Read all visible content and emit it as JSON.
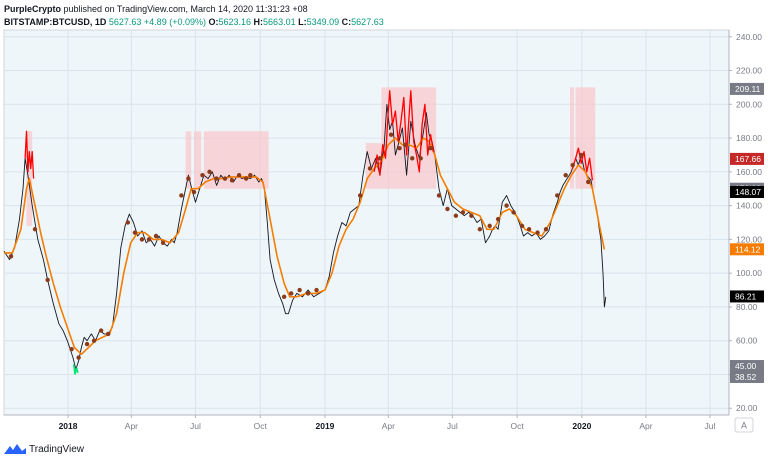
{
  "header": {
    "author": "PurpleCrypto",
    "published": "published on TradingView.com, March 14, 2020 11:31:23 +08",
    "symbol": "BITSTAMP:BTCUSD, 1D",
    "last": "5627.63",
    "change": "+4.89 (+0.09%)",
    "o_label": "O:",
    "o_value": "5623.16",
    "h_label": "H:",
    "h_value": "5663.01",
    "l_label": "L:",
    "l_value": "5349.09",
    "c_label": "C:",
    "c_value": "5627.63"
  },
  "footer": {
    "brand": "TradingView"
  },
  "axis_corner": "A",
  "colors": {
    "background": "#eef6fa",
    "price_line": "#131722",
    "ema_line": "#f57c00",
    "overbought_line": "#ff0000",
    "oversold_line": "#00e676",
    "shade": "#f8c8cc",
    "dot": "#8b3a1a"
  },
  "chart_data": {
    "type": "line",
    "x_tick_labels": [
      "2018",
      "Apr",
      "Jul",
      "Oct",
      "2019",
      "Apr",
      "Jul",
      "Oct",
      "2020",
      "Apr",
      "Jul"
    ],
    "y_tick_labels": [
      "20.00",
      "40.00",
      "60.00",
      "80.00",
      "100.00",
      "120.00",
      "140.00",
      "160.00",
      "180.00",
      "200.00",
      "220.00",
      "240.00"
    ],
    "y_ticks": [
      20,
      40,
      60,
      80,
      100,
      120,
      140,
      160,
      180,
      200,
      220,
      240
    ],
    "ylim": [
      16,
      244
    ],
    "xlim": [
      0,
      1030
    ],
    "x_ticks": [
      91,
      181,
      272,
      364,
      456,
      546,
      637,
      729,
      821,
      912,
      1003
    ],
    "price": [
      [
        0,
        113
      ],
      [
        8,
        108
      ],
      [
        15,
        115
      ],
      [
        22,
        132
      ],
      [
        27,
        150
      ],
      [
        30,
        168
      ],
      [
        34,
        158
      ],
      [
        40,
        140
      ],
      [
        48,
        120
      ],
      [
        56,
        108
      ],
      [
        62,
        96
      ],
      [
        70,
        82
      ],
      [
        78,
        70
      ],
      [
        84,
        66
      ],
      [
        90,
        60
      ],
      [
        94,
        55
      ],
      [
        98,
        50
      ],
      [
        102,
        43
      ],
      [
        106,
        48
      ],
      [
        110,
        56
      ],
      [
        114,
        62
      ],
      [
        118,
        60
      ],
      [
        124,
        64
      ],
      [
        130,
        60
      ],
      [
        136,
        66
      ],
      [
        142,
        64
      ],
      [
        148,
        64
      ],
      [
        154,
        68
      ],
      [
        160,
        88
      ],
      [
        166,
        115
      ],
      [
        172,
        128
      ],
      [
        178,
        135
      ],
      [
        184,
        130
      ],
      [
        190,
        122
      ],
      [
        196,
        125
      ],
      [
        202,
        118
      ],
      [
        208,
        120
      ],
      [
        214,
        116
      ],
      [
        220,
        122
      ],
      [
        226,
        118
      ],
      [
        232,
        116
      ],
      [
        238,
        120
      ],
      [
        242,
        118
      ],
      [
        246,
        124
      ],
      [
        252,
        138
      ],
      [
        258,
        150
      ],
      [
        262,
        158
      ],
      [
        268,
        148
      ],
      [
        272,
        142
      ],
      [
        278,
        150
      ],
      [
        284,
        158
      ],
      [
        290,
        156
      ],
      [
        296,
        160
      ],
      [
        302,
        152
      ],
      [
        308,
        158
      ],
      [
        314,
        155
      ],
      [
        320,
        158
      ],
      [
        326,
        154
      ],
      [
        332,
        158
      ],
      [
        338,
        156
      ],
      [
        344,
        157
      ],
      [
        350,
        156
      ],
      [
        356,
        158
      ],
      [
        362,
        154
      ],
      [
        366,
        156
      ],
      [
        370,
        150
      ],
      [
        374,
        130
      ],
      [
        378,
        108
      ],
      [
        384,
        96
      ],
      [
        390,
        88
      ],
      [
        396,
        82
      ],
      [
        400,
        76
      ],
      [
        404,
        76
      ],
      [
        410,
        84
      ],
      [
        416,
        88
      ],
      [
        424,
        86
      ],
      [
        432,
        90
      ],
      [
        440,
        86
      ],
      [
        448,
        88
      ],
      [
        456,
        90
      ],
      [
        462,
        98
      ],
      [
        468,
        112
      ],
      [
        474,
        122
      ],
      [
        480,
        130
      ],
      [
        486,
        128
      ],
      [
        492,
        136
      ],
      [
        498,
        138
      ],
      [
        504,
        140
      ],
      [
        510,
        158
      ],
      [
        516,
        172
      ],
      [
        522,
        162
      ],
      [
        528,
        168
      ],
      [
        534,
        158
      ],
      [
        540,
        175
      ],
      [
        544,
        200
      ],
      [
        548,
        185
      ],
      [
        552,
        190
      ],
      [
        556,
        170
      ],
      [
        560,
        176
      ],
      [
        566,
        186
      ],
      [
        572,
        158
      ],
      [
        578,
        190
      ],
      [
        584,
        176
      ],
      [
        590,
        168
      ],
      [
        596,
        184
      ],
      [
        600,
        195
      ],
      [
        604,
        182
      ],
      [
        608,
        178
      ],
      [
        612,
        170
      ],
      [
        618,
        150
      ],
      [
        624,
        140
      ],
      [
        630,
        150
      ],
      [
        636,
        140
      ],
      [
        642,
        138
      ],
      [
        648,
        136
      ],
      [
        654,
        134
      ],
      [
        660,
        136
      ],
      [
        666,
        134
      ],
      [
        672,
        130
      ],
      [
        678,
        132
      ],
      [
        684,
        118
      ],
      [
        690,
        122
      ],
      [
        694,
        126
      ],
      [
        698,
        128
      ],
      [
        702,
        126
      ],
      [
        708,
        142
      ],
      [
        714,
        146
      ],
      [
        720,
        140
      ],
      [
        726,
        136
      ],
      [
        732,
        130
      ],
      [
        738,
        122
      ],
      [
        744,
        124
      ],
      [
        750,
        122
      ],
      [
        756,
        124
      ],
      [
        762,
        120
      ],
      [
        768,
        122
      ],
      [
        774,
        125
      ],
      [
        780,
        135
      ],
      [
        786,
        142
      ],
      [
        790,
        148
      ],
      [
        794,
        152
      ],
      [
        800,
        156
      ],
      [
        806,
        160
      ],
      [
        812,
        168
      ],
      [
        816,
        164
      ],
      [
        820,
        170
      ],
      [
        824,
        162
      ],
      [
        828,
        158
      ],
      [
        834,
        155
      ],
      [
        838,
        145
      ],
      [
        842,
        138
      ],
      [
        845,
        128
      ],
      [
        848,
        120
      ],
      [
        851,
        100
      ],
      [
        853,
        80
      ],
      [
        855,
        86
      ]
    ],
    "ema": [
      [
        0,
        112
      ],
      [
        12,
        112
      ],
      [
        24,
        126
      ],
      [
        32,
        150
      ],
      [
        36,
        156
      ],
      [
        44,
        140
      ],
      [
        52,
        124
      ],
      [
        60,
        110
      ],
      [
        70,
        94
      ],
      [
        80,
        80
      ],
      [
        90,
        68
      ],
      [
        100,
        56
      ],
      [
        110,
        52
      ],
      [
        120,
        56
      ],
      [
        130,
        60
      ],
      [
        140,
        62
      ],
      [
        150,
        64
      ],
      [
        160,
        76
      ],
      [
        170,
        100
      ],
      [
        180,
        118
      ],
      [
        190,
        124
      ],
      [
        200,
        124
      ],
      [
        212,
        120
      ],
      [
        224,
        120
      ],
      [
        236,
        118
      ],
      [
        248,
        124
      ],
      [
        258,
        138
      ],
      [
        266,
        150
      ],
      [
        276,
        150
      ],
      [
        286,
        154
      ],
      [
        298,
        156
      ],
      [
        310,
        156
      ],
      [
        322,
        157
      ],
      [
        334,
        157
      ],
      [
        346,
        157
      ],
      [
        358,
        157
      ],
      [
        368,
        154
      ],
      [
        378,
        132
      ],
      [
        388,
        110
      ],
      [
        398,
        94
      ],
      [
        406,
        86
      ],
      [
        416,
        86
      ],
      [
        430,
        88
      ],
      [
        444,
        88
      ],
      [
        456,
        90
      ],
      [
        466,
        100
      ],
      [
        476,
        116
      ],
      [
        486,
        126
      ],
      [
        496,
        132
      ],
      [
        506,
        142
      ],
      [
        516,
        156
      ],
      [
        526,
        162
      ],
      [
        536,
        166
      ],
      [
        546,
        176
      ],
      [
        556,
        180
      ],
      [
        566,
        176
      ],
      [
        576,
        176
      ],
      [
        586,
        174
      ],
      [
        596,
        180
      ],
      [
        604,
        178
      ],
      [
        612,
        170
      ],
      [
        620,
        158
      ],
      [
        630,
        150
      ],
      [
        640,
        142
      ],
      [
        652,
        138
      ],
      [
        664,
        136
      ],
      [
        676,
        134
      ],
      [
        686,
        126
      ],
      [
        696,
        126
      ],
      [
        708,
        136
      ],
      [
        718,
        138
      ],
      [
        728,
        134
      ],
      [
        740,
        126
      ],
      [
        752,
        124
      ],
      [
        764,
        122
      ],
      [
        776,
        130
      ],
      [
        786,
        140
      ],
      [
        796,
        150
      ],
      [
        806,
        158
      ],
      [
        816,
        164
      ],
      [
        826,
        160
      ],
      [
        836,
        150
      ],
      [
        846,
        128
      ],
      [
        853,
        114
      ]
    ],
    "shaded_ranges": [
      [
        32,
        40,
        128,
        184
      ],
      [
        258,
        266,
        150,
        184
      ],
      [
        270,
        280,
        150,
        184
      ],
      [
        284,
        306,
        150,
        184
      ],
      [
        306,
        376,
        150,
        184
      ],
      [
        514,
        536,
        150,
        177
      ],
      [
        536,
        598,
        150,
        210
      ],
      [
        598,
        614,
        150,
        210
      ],
      [
        804,
        810,
        150,
        210
      ],
      [
        812,
        840,
        150,
        210
      ]
    ],
    "overbought_segments": [
      [
        [
          30,
          168
        ],
        [
          32,
          184
        ],
        [
          34,
          160
        ],
        [
          36,
          172
        ],
        [
          38,
          162
        ],
        [
          40,
          172
        ],
        [
          42,
          156
        ]
      ],
      [
        [
          526,
          160
        ],
        [
          530,
          170
        ],
        [
          534,
          158
        ],
        [
          538,
          176
        ],
        [
          542,
          168
        ],
        [
          546,
          196
        ],
        [
          548,
          208
        ],
        [
          552,
          188
        ],
        [
          556,
          196
        ],
        [
          560,
          178
        ],
        [
          564,
          190
        ],
        [
          568,
          204
        ],
        [
          572,
          170
        ],
        [
          576,
          196
        ],
        [
          578,
          208
        ],
        [
          582,
          178
        ],
        [
          586,
          170
        ],
        [
          590,
          160
        ],
        [
          594,
          188
        ],
        [
          598,
          200
        ],
        [
          602,
          170
        ],
        [
          606,
          182
        ],
        [
          610,
          172
        ]
      ],
      [
        [
          808,
          162
        ],
        [
          812,
          168
        ],
        [
          816,
          174
        ],
        [
          820,
          165
        ],
        [
          824,
          172
        ],
        [
          828,
          160
        ],
        [
          832,
          168
        ],
        [
          836,
          155
        ]
      ]
    ],
    "oversold_segments": [
      [
        [
          99,
          46
        ],
        [
          101,
          40
        ],
        [
          103,
          44
        ],
        [
          105,
          41
        ]
      ]
    ],
    "markers": [
      [
        10,
        110
      ],
      [
        44,
        126
      ],
      [
        62,
        96
      ],
      [
        96,
        55
      ],
      [
        106,
        50
      ],
      [
        118,
        58
      ],
      [
        128,
        60
      ],
      [
        138,
        66
      ],
      [
        148,
        64
      ],
      [
        176,
        130
      ],
      [
        186,
        124
      ],
      [
        196,
        120
      ],
      [
        206,
        120
      ],
      [
        216,
        122
      ],
      [
        226,
        118
      ],
      [
        252,
        146
      ],
      [
        262,
        156
      ],
      [
        270,
        148
      ],
      [
        282,
        158
      ],
      [
        292,
        160
      ],
      [
        302,
        156
      ],
      [
        314,
        156
      ],
      [
        324,
        155
      ],
      [
        334,
        158
      ],
      [
        344,
        156
      ],
      [
        350,
        158
      ],
      [
        398,
        86
      ],
      [
        408,
        88
      ],
      [
        420,
        90
      ],
      [
        432,
        88
      ],
      [
        444,
        90
      ],
      [
        506,
        146
      ],
      [
        520,
        162
      ],
      [
        534,
        168
      ],
      [
        550,
        182
      ],
      [
        562,
        174
      ],
      [
        570,
        176
      ],
      [
        580,
        168
      ],
      [
        592,
        168
      ],
      [
        606,
        174
      ],
      [
        618,
        146
      ],
      [
        630,
        138
      ],
      [
        642,
        134
      ],
      [
        652,
        136
      ],
      [
        664,
        134
      ],
      [
        676,
        126
      ],
      [
        690,
        128
      ],
      [
        702,
        132
      ],
      [
        714,
        140
      ],
      [
        724,
        136
      ],
      [
        736,
        128
      ],
      [
        746,
        126
      ],
      [
        758,
        124
      ],
      [
        770,
        126
      ],
      [
        786,
        146
      ],
      [
        798,
        158
      ],
      [
        808,
        164
      ],
      [
        820,
        170
      ],
      [
        830,
        154
      ]
    ],
    "price_labels": [
      {
        "text": "209.11",
        "y": 209.11,
        "color": "#787b86"
      },
      {
        "text": "167.66",
        "y": 167.66,
        "color": "#c62828"
      },
      {
        "text": "150.00",
        "y": 150.0,
        "color": "#787b86"
      },
      {
        "text": "148.07",
        "y": 148.07,
        "color": "#000000"
      },
      {
        "text": "114.12",
        "y": 114.12,
        "color": "#f57c00"
      },
      {
        "text": "86.21",
        "y": 86.21,
        "color": "#000000"
      },
      {
        "text": "45.00",
        "y": 45.0,
        "color": "#787b86"
      },
      {
        "text": "38.52",
        "y": 38.52,
        "color": "#787b86"
      }
    ]
  }
}
